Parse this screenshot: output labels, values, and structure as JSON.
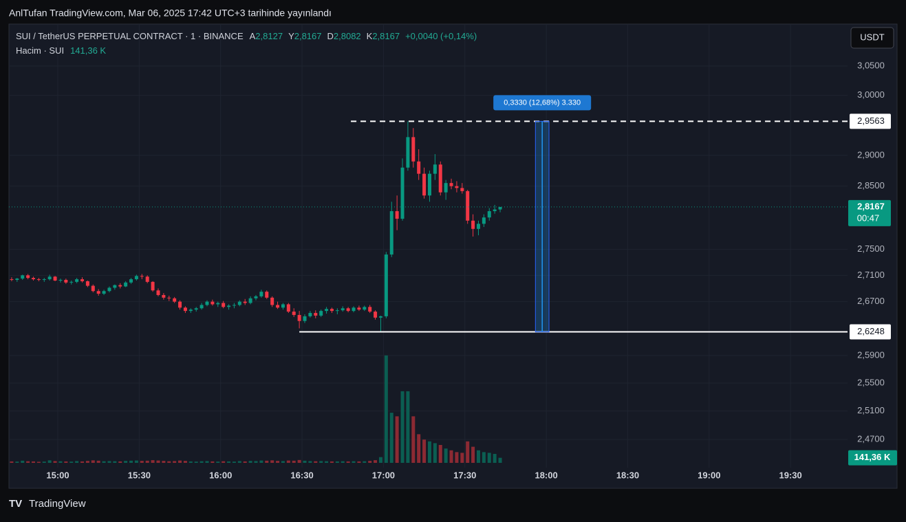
{
  "header": {
    "title": "AnlTufan TradingView.com, Mar 06, 2025 17:42 UTC+3 tarihinde yayınlandı",
    "currency_button": "USDT",
    "brand": "TradingView"
  },
  "legend": {
    "symbol": "SUI / TetherUS PERPETUAL CONTRACT · 1 · BINANCE",
    "open_key": "A",
    "open": "2,8127",
    "high_key": "Y",
    "high": "2,8167",
    "low_key": "D",
    "low": "2,8082",
    "close_key": "K",
    "close": "2,8167",
    "change": "+0,0040 (+0,14%)",
    "volume_name": "Hacim · SUI"
  },
  "chart_data": {
    "type": "candlestick",
    "log_scale": true,
    "grid": true,
    "up_color": "#089981",
    "down_color": "#f23645",
    "volume_up_color": "#0b5e52",
    "volume_down_color": "#8c2a33",
    "x": [
      "14:42",
      "14:44",
      "14:46",
      "14:48",
      "14:50",
      "14:52",
      "14:54",
      "14:56",
      "14:58",
      "15:00",
      "15:02",
      "15:04",
      "15:06",
      "15:08",
      "15:10",
      "15:12",
      "15:14",
      "15:16",
      "15:18",
      "15:20",
      "15:22",
      "15:24",
      "15:26",
      "15:28",
      "15:30",
      "15:32",
      "15:34",
      "15:36",
      "15:38",
      "15:40",
      "15:42",
      "15:44",
      "15:46",
      "15:48",
      "15:50",
      "15:52",
      "15:54",
      "15:56",
      "15:58",
      "16:00",
      "16:02",
      "16:04",
      "16:06",
      "16:08",
      "16:10",
      "16:12",
      "16:14",
      "16:16",
      "16:18",
      "16:20",
      "16:22",
      "16:24",
      "16:26",
      "16:28",
      "16:30",
      "16:32",
      "16:34",
      "16:36",
      "16:38",
      "16:40",
      "16:42",
      "16:44",
      "16:46",
      "16:48",
      "16:50",
      "16:52",
      "16:54",
      "16:56",
      "16:58",
      "17:00",
      "17:02",
      "17:04",
      "17:06",
      "17:08",
      "17:10",
      "17:12",
      "17:14",
      "17:16",
      "17:18",
      "17:20",
      "17:22",
      "17:24",
      "17:26",
      "17:28",
      "17:30",
      "17:32",
      "17:34",
      "17:36",
      "17:38",
      "17:40",
      "17:42"
    ],
    "open": [
      2.704,
      2.703,
      2.705,
      2.71,
      2.706,
      2.704,
      2.703,
      2.704,
      2.708,
      2.702,
      2.703,
      2.699,
      2.7,
      2.704,
      2.701,
      2.694,
      2.686,
      2.682,
      2.686,
      2.691,
      2.695,
      2.693,
      2.699,
      2.704,
      2.709,
      2.708,
      2.7,
      2.687,
      2.68,
      2.676,
      2.675,
      2.67,
      2.661,
      2.656,
      2.658,
      2.66,
      2.665,
      2.67,
      2.666,
      2.668,
      2.662,
      2.664,
      2.665,
      2.67,
      2.668,
      2.675,
      2.678,
      2.685,
      2.676,
      2.665,
      2.661,
      2.666,
      2.655,
      2.65,
      2.641,
      2.648,
      2.653,
      2.649,
      2.656,
      2.659,
      2.656,
      2.657,
      2.66,
      2.656,
      2.661,
      2.658,
      2.662,
      2.655,
      2.646,
      2.648,
      2.742,
      2.81,
      2.798,
      2.88,
      2.93,
      2.89,
      2.87,
      2.835,
      2.87,
      2.885,
      2.84,
      2.855,
      2.85,
      2.847,
      2.842,
      2.795,
      2.782,
      2.79,
      2.8,
      2.81,
      2.8127
    ],
    "high": [
      2.707,
      2.706,
      2.711,
      2.712,
      2.708,
      2.706,
      2.706,
      2.711,
      2.709,
      2.705,
      2.705,
      2.702,
      2.706,
      2.707,
      2.702,
      2.696,
      2.689,
      2.688,
      2.693,
      2.696,
      2.698,
      2.701,
      2.706,
      2.711,
      2.712,
      2.71,
      2.701,
      2.69,
      2.683,
      2.679,
      2.677,
      2.672,
      2.663,
      2.66,
      2.662,
      2.668,
      2.672,
      2.673,
      2.67,
      2.671,
      2.666,
      2.668,
      2.672,
      2.674,
      2.678,
      2.68,
      2.688,
      2.687,
      2.678,
      2.67,
      2.668,
      2.668,
      2.66,
      2.656,
      2.651,
      2.656,
      2.657,
      2.658,
      2.662,
      2.661,
      2.66,
      2.663,
      2.662,
      2.663,
      2.664,
      2.664,
      2.665,
      2.657,
      2.649,
      2.746,
      2.825,
      2.835,
      2.895,
      2.9563,
      2.945,
      2.91,
      2.88,
      2.875,
      2.902,
      2.89,
      2.86,
      2.862,
      2.858,
      2.855,
      2.844,
      2.805,
      2.795,
      2.805,
      2.815,
      2.82,
      2.8167
    ],
    "low": [
      2.701,
      2.7,
      2.703,
      2.704,
      2.702,
      2.701,
      2.7,
      2.702,
      2.701,
      2.699,
      2.697,
      2.696,
      2.698,
      2.699,
      2.692,
      2.684,
      2.679,
      2.68,
      2.684,
      2.688,
      2.69,
      2.692,
      2.697,
      2.702,
      2.704,
      2.698,
      2.685,
      2.678,
      2.673,
      2.671,
      2.668,
      2.658,
      2.653,
      2.653,
      2.655,
      2.658,
      2.663,
      2.664,
      2.662,
      2.66,
      2.658,
      2.66,
      2.663,
      2.665,
      2.666,
      2.672,
      2.676,
      2.674,
      2.662,
      2.659,
      2.658,
      2.653,
      2.647,
      2.63,
      2.638,
      2.646,
      2.645,
      2.647,
      2.652,
      2.653,
      2.651,
      2.655,
      2.654,
      2.654,
      2.656,
      2.656,
      2.653,
      2.643,
      2.6248,
      2.645,
      2.738,
      2.78,
      2.795,
      2.875,
      2.88,
      2.86,
      2.83,
      2.825,
      2.86,
      2.835,
      2.828,
      2.845,
      2.84,
      2.838,
      2.79,
      2.77,
      2.772,
      2.785,
      2.795,
      2.806,
      2.8082
    ],
    "close": [
      2.703,
      2.705,
      2.71,
      2.706,
      2.704,
      2.703,
      2.704,
      2.708,
      2.702,
      2.703,
      2.699,
      2.7,
      2.704,
      2.701,
      2.694,
      2.686,
      2.682,
      2.686,
      2.691,
      2.695,
      2.693,
      2.699,
      2.704,
      2.709,
      2.708,
      2.7,
      2.687,
      2.68,
      2.676,
      2.675,
      2.67,
      2.661,
      2.656,
      2.658,
      2.66,
      2.665,
      2.67,
      2.666,
      2.668,
      2.662,
      2.664,
      2.665,
      2.67,
      2.668,
      2.675,
      2.678,
      2.685,
      2.676,
      2.665,
      2.661,
      2.666,
      2.655,
      2.65,
      2.641,
      2.648,
      2.653,
      2.649,
      2.656,
      2.659,
      2.656,
      2.657,
      2.66,
      2.656,
      2.661,
      2.658,
      2.662,
      2.655,
      2.646,
      2.648,
      2.742,
      2.81,
      2.798,
      2.88,
      2.93,
      2.89,
      2.87,
      2.835,
      2.87,
      2.885,
      2.84,
      2.855,
      2.85,
      2.847,
      2.842,
      2.795,
      2.782,
      2.79,
      2.8,
      2.81,
      2.8127,
      2.8167
    ],
    "volume": [
      40,
      35,
      60,
      45,
      40,
      30,
      35,
      70,
      50,
      45,
      40,
      35,
      50,
      40,
      55,
      70,
      60,
      45,
      50,
      45,
      40,
      55,
      60,
      65,
      55,
      60,
      75,
      65,
      55,
      45,
      50,
      65,
      55,
      40,
      35,
      45,
      50,
      40,
      35,
      45,
      40,
      35,
      50,
      40,
      55,
      50,
      65,
      60,
      70,
      55,
      50,
      65,
      60,
      80,
      60,
      50,
      45,
      50,
      45,
      40,
      40,
      45,
      40,
      45,
      40,
      45,
      55,
      75,
      160,
      3000,
      1400,
      1300,
      2000,
      2000,
      1300,
      800,
      650,
      600,
      550,
      500,
      400,
      350,
      300,
      280,
      600,
      450,
      350,
      300,
      280,
      250,
      141.36
    ],
    "last_volume_label": "141,36 K",
    "vlim": [
      0,
      3400
    ],
    "xlim": [
      "14:42",
      "19:51"
    ],
    "xticks": [
      "15:00",
      "15:30",
      "16:00",
      "16:30",
      "17:00",
      "17:30",
      "18:00",
      "18:30",
      "19:00",
      "19:30"
    ],
    "ylim": [
      2.431,
      3.1232
    ],
    "yticks": [
      {
        "value": 3.05,
        "label": "3,0500"
      },
      {
        "value": 3.0,
        "label": "3,0000"
      },
      {
        "value": 2.9,
        "label": "2,9000"
      },
      {
        "value": 2.85,
        "label": "2,8500"
      },
      {
        "value": 2.75,
        "label": "2,7500"
      },
      {
        "value": 2.71,
        "label": "2,7100"
      },
      {
        "value": 2.67,
        "label": "2,6700"
      },
      {
        "value": 2.59,
        "label": "2,5900"
      },
      {
        "value": 2.55,
        "label": "2,5500"
      },
      {
        "value": 2.51,
        "label": "2,5100"
      },
      {
        "value": 2.47,
        "label": "2,4700"
      }
    ],
    "high_line": {
      "value": 2.9563,
      "label": "2,9563",
      "start": "16:48"
    },
    "low_line": {
      "value": 2.6248,
      "label": "2,6248",
      "start": "16:29"
    },
    "last_price": {
      "value": 2.8167,
      "label": "2,8167",
      "countdown": "00:47"
    },
    "measure": {
      "start": "17:56",
      "end": "18:01",
      "label": "0,3330 (12,68%) 3.330"
    }
  }
}
